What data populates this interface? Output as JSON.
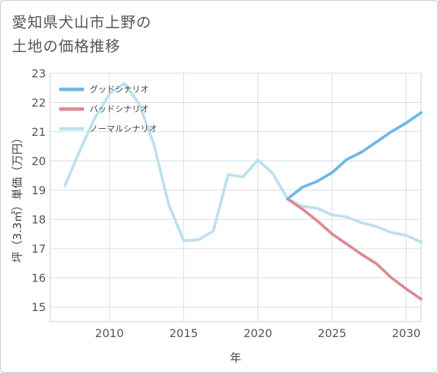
{
  "page": {
    "title_line1": "愛知県犬山市上野の",
    "title_line2": "土地の価格推移"
  },
  "chart_data": {
    "type": "line",
    "xlabel": "年",
    "ylabel": "坪（3.3㎡）単価（万円）",
    "xlim": [
      2006,
      2031
    ],
    "ylim": [
      14.5,
      23
    ],
    "xticks": [
      2010,
      2015,
      2020,
      2025,
      2030
    ],
    "yticks": [
      15,
      16,
      17,
      18,
      19,
      20,
      21,
      22,
      23
    ],
    "grid": true,
    "legend_position": "top-left",
    "series": [
      {
        "name": "グッドシナリオ",
        "color": "#6cb8e8",
        "x": [
          2022,
          2023,
          2024,
          2025,
          2026,
          2027,
          2028,
          2029,
          2030,
          2031
        ],
        "y": [
          18.7,
          19.1,
          19.3,
          19.6,
          20.05,
          20.3,
          20.65,
          21.0,
          21.3,
          21.65
        ]
      },
      {
        "name": "バッドシナリオ",
        "color": "#dc8a92",
        "x": [
          2022,
          2023,
          2024,
          2025,
          2026,
          2027,
          2028,
          2029,
          2030,
          2031
        ],
        "y": [
          18.7,
          18.35,
          17.95,
          17.5,
          17.15,
          16.8,
          16.48,
          16.0,
          15.62,
          15.27
        ]
      },
      {
        "name": "ノーマルシナリオ",
        "color": "#bde0ee",
        "x": [
          2007,
          2008,
          2009,
          2010,
          2011,
          2012,
          2013,
          2014,
          2015,
          2016,
          2017,
          2018,
          2019,
          2020,
          2021,
          2022,
          2023,
          2024,
          2025,
          2026,
          2027,
          2028,
          2029,
          2030,
          2031
        ],
        "y": [
          19.15,
          20.35,
          21.45,
          22.3,
          22.65,
          21.95,
          20.55,
          18.5,
          17.27,
          17.3,
          17.6,
          19.53,
          19.45,
          20.03,
          19.58,
          18.7,
          18.45,
          18.38,
          18.15,
          18.08,
          17.88,
          17.75,
          17.55,
          17.45,
          17.22
        ]
      }
    ]
  }
}
